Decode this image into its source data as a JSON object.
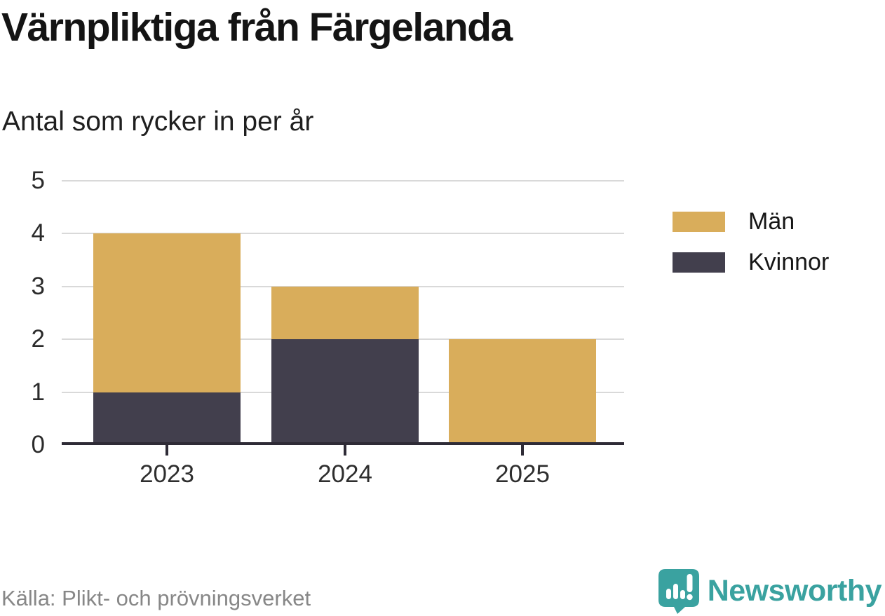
{
  "header": {
    "title": "Värnpliktiga från Färgelanda",
    "subtitle": "Antal som rycker in per år"
  },
  "chart_data": {
    "type": "bar",
    "stacked": true,
    "title": "Värnpliktiga från Färgelanda",
    "subtitle": "Antal som rycker in per år",
    "categories": [
      "2023",
      "2024",
      "2025"
    ],
    "series": [
      {
        "name": "Män",
        "color": "#d9ad5b",
        "values": [
          3,
          1,
          2
        ]
      },
      {
        "name": "Kvinnor",
        "color": "#423f4d",
        "values": [
          1,
          2,
          0
        ]
      }
    ],
    "stack_order_bottom_to_top": [
      "Kvinnor",
      "Män"
    ],
    "totals": [
      4,
      3,
      2
    ],
    "xlabel": "",
    "ylabel": "",
    "ylim": [
      0,
      5
    ],
    "yticks": [
      0,
      1,
      2,
      3,
      4,
      5
    ],
    "grid": true,
    "legend_position": "right",
    "axis_color": "#2e2b36",
    "gridline_color": "#d9d9d9"
  },
  "footer": {
    "source": "Källa: Plikt- och prövningsverket",
    "brand": "Newsworthy",
    "brand_color": "#3aa2a0"
  }
}
